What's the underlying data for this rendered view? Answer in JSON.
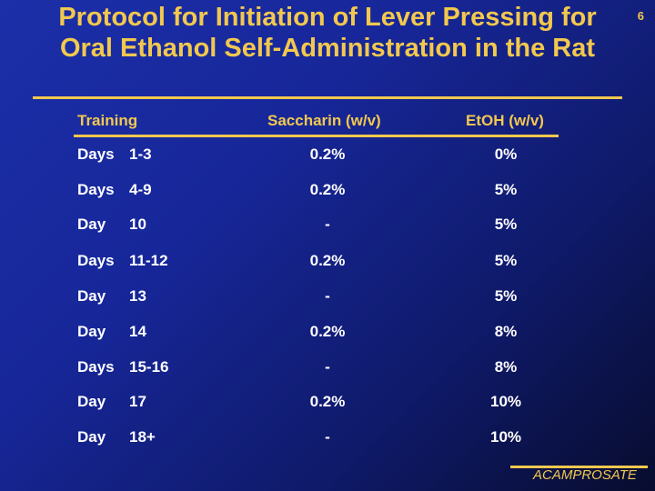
{
  "title": "Protocol for Initiation of Lever Pressing for Oral Ethanol Self-Administration in the Rat",
  "page_number": "6",
  "headers": {
    "training": "Training",
    "saccharin": "Saccharin (w/v)",
    "etoh": "EtOH (w/v)"
  },
  "rows": [
    {
      "unit": "Days",
      "day": "1-3",
      "saccharin": "0.2%",
      "etoh": "0%"
    },
    {
      "unit": "Days",
      "day": "4-9",
      "saccharin": "0.2%",
      "etoh": "5%"
    },
    {
      "unit": "Day",
      "day": "10",
      "saccharin": "-",
      "etoh": "5%"
    },
    {
      "unit": "Days",
      "day": "11-12",
      "saccharin": "0.2%",
      "etoh": "5%"
    },
    {
      "unit": "Day",
      "day": "13",
      "saccharin": "-",
      "etoh": "5%"
    },
    {
      "unit": "Day",
      "day": "14",
      "saccharin": "0.2%",
      "etoh": "8%"
    },
    {
      "unit": "Days",
      "day": "15-16",
      "saccharin": "-",
      "etoh": "8%"
    },
    {
      "unit": "Day",
      "day": "17",
      "saccharin": "0.2%",
      "etoh": "10%"
    },
    {
      "unit": "Day",
      "day": "18+",
      "saccharin": "-",
      "etoh": "10%"
    }
  ],
  "footer": "ACAMPROSATE"
}
